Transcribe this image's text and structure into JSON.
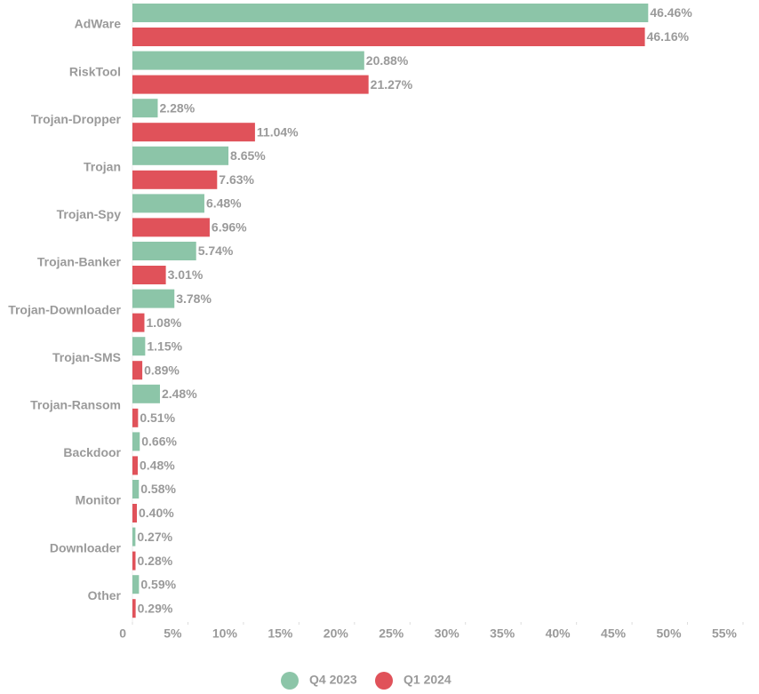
{
  "chart_data": {
    "type": "bar",
    "orientation": "horizontal",
    "categories": [
      "AdWare",
      "RiskTool",
      "Trojan-Dropper",
      "Trojan",
      "Trojan-Spy",
      "Trojan-Banker",
      "Trojan-Downloader",
      "Trojan-SMS",
      "Trojan-Ransom",
      "Backdoor",
      "Monitor",
      "Downloader",
      "Other"
    ],
    "series": [
      {
        "name": "Q4 2023",
        "color": "#8cc5a8",
        "values": [
          46.46,
          20.88,
          2.28,
          8.65,
          6.48,
          5.74,
          3.78,
          1.15,
          2.48,
          0.66,
          0.58,
          0.27,
          0.59
        ],
        "value_labels": [
          "46.46%",
          "20.88%",
          "2.28%",
          "8.65%",
          "6.48%",
          "5.74%",
          "3.78%",
          "1.15%",
          "2.48%",
          "0.66%",
          "0.58%",
          "0.27%",
          "0.59%"
        ]
      },
      {
        "name": "Q1 2024",
        "color": "#e0525a",
        "values": [
          46.16,
          21.27,
          11.04,
          7.63,
          6.96,
          3.01,
          1.08,
          0.89,
          0.51,
          0.48,
          0.4,
          0.28,
          0.29
        ],
        "value_labels": [
          "46.16%",
          "21.27%",
          "11.04%",
          "7.63%",
          "6.96%",
          "3.01%",
          "1.08%",
          "0.89%",
          "0.51%",
          "0.48%",
          "0.40%",
          "0.28%",
          "0.29%"
        ]
      }
    ],
    "xlim": [
      0,
      55
    ],
    "xticks": [
      0,
      {
        "value": 5,
        "label": "5%"
      },
      {
        "value": 10,
        "label": "10%"
      },
      {
        "value": 15,
        "label": "15%"
      },
      {
        "value": 20,
        "label": "20%"
      },
      {
        "value": 25,
        "label": "25%"
      },
      {
        "value": 30,
        "label": "30%"
      },
      {
        "value": 35,
        "label": "35%"
      },
      {
        "value": 40,
        "label": "40%"
      },
      {
        "value": 45,
        "label": "45%"
      },
      {
        "value": 50,
        "label": "50%"
      },
      {
        "value": 55,
        "label": "55%"
      }
    ],
    "legend": "bottom"
  }
}
